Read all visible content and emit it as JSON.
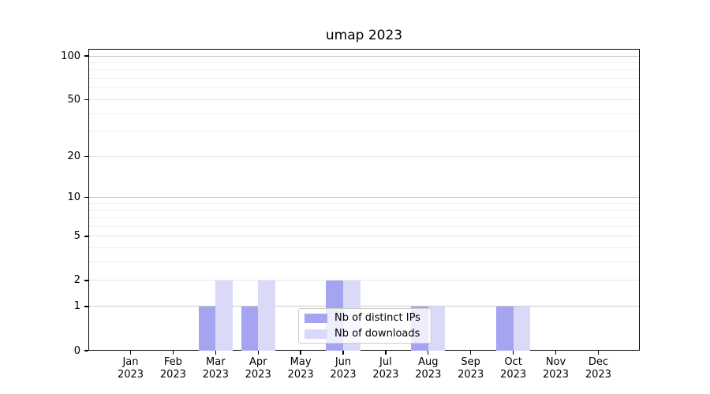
{
  "title": "umap 2023",
  "chart_data": {
    "type": "bar",
    "title": "umap 2023",
    "categories": [
      "Jan",
      "Feb",
      "Mar",
      "Apr",
      "May",
      "Jun",
      "Jul",
      "Aug",
      "Sep",
      "Oct",
      "Nov",
      "Dec"
    ],
    "year": "2023",
    "series": [
      {
        "name": "Nb of distinct IPs",
        "color": "#a4a4f1",
        "values": [
          0,
          0,
          1,
          1,
          0,
          2,
          0,
          1,
          0,
          1,
          0,
          0
        ]
      },
      {
        "name": "Nb of downloads",
        "color": "#dadaf8",
        "values": [
          0,
          0,
          2,
          2,
          0,
          2,
          0,
          1,
          0,
          1,
          0,
          0
        ]
      }
    ],
    "yscale": "log1p",
    "ylim": [
      0,
      112
    ],
    "yticks_major": [
      0,
      1,
      2,
      5,
      10,
      20,
      50,
      100
    ],
    "yticks_decade": [
      1,
      10,
      100
    ],
    "yticks_minor": [
      3,
      4,
      6,
      7,
      8,
      9,
      30,
      40,
      60,
      70,
      80,
      90
    ],
    "grid": true,
    "legend_position": "lower-center"
  },
  "colors": {
    "grid_decade": "#cbcbcb",
    "grid_major": "#e7e7e7",
    "grid_minor": "#f0f0f0",
    "spine": "#000000",
    "background": "#ffffff"
  }
}
